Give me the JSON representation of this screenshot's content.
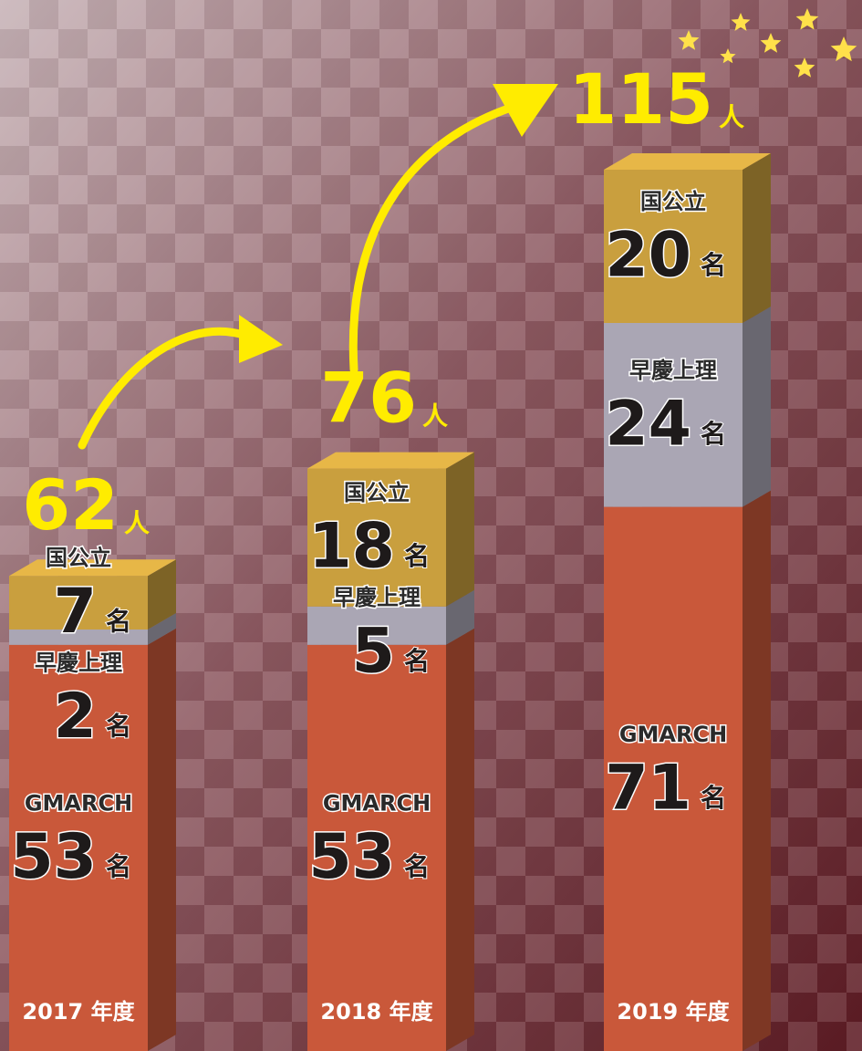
{
  "chart_data": {
    "type": "bar",
    "stacked": true,
    "categories": [
      "2017 年度",
      "2018 年度",
      "2019 年度"
    ],
    "series": [
      {
        "name": "GMARCH",
        "color": "#c9583a",
        "values": [
          53,
          53,
          71
        ]
      },
      {
        "name": "早慶上理",
        "color": "#aaa6b4",
        "values": [
          2,
          5,
          24
        ]
      },
      {
        "name": "国公立",
        "color": "#c99f3e",
        "values": [
          7,
          18,
          20
        ]
      }
    ],
    "unit": "名",
    "totals": [
      62,
      76,
      115
    ],
    "total_unit": "人"
  }
}
